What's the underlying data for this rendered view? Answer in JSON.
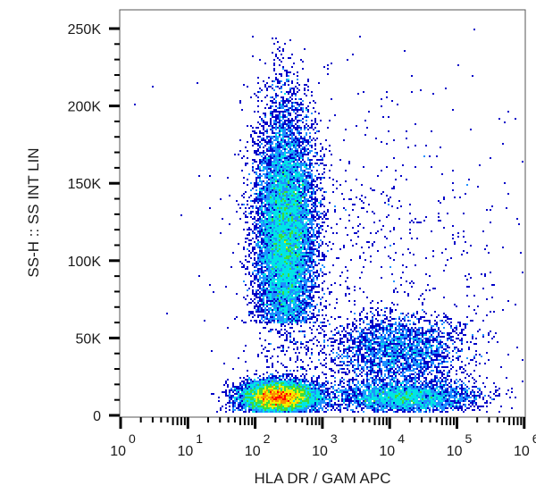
{
  "chart_data": {
    "type": "scatter",
    "subtype": "flow-cytometry-density-dot-plot",
    "title": "",
    "xlabel": "HLA DR  / GAM APC",
    "ylabel": "SS-H :: SS INT LIN",
    "x_scale": "log",
    "y_scale": "linear",
    "xlim": [
      1,
      1000000
    ],
    "ylim": [
      0,
      262144
    ],
    "x_ticks": [
      {
        "base": "10",
        "exp": "0",
        "value": 1
      },
      {
        "base": "10",
        "exp": "1",
        "value": 10
      },
      {
        "base": "10",
        "exp": "2",
        "value": 100
      },
      {
        "base": "10",
        "exp": "3",
        "value": 1000
      },
      {
        "base": "10",
        "exp": "4",
        "value": 10000
      },
      {
        "base": "10",
        "exp": "5",
        "value": 100000
      },
      {
        "base": "10",
        "exp": "6",
        "value": 1000000
      }
    ],
    "y_ticks": [
      {
        "label": "0",
        "value": 0
      },
      {
        "label": "50K",
        "value": 50000
      },
      {
        "label": "100K",
        "value": 100000
      },
      {
        "label": "150K",
        "value": 150000
      },
      {
        "label": "200K",
        "value": 200000
      },
      {
        "label": "250K",
        "value": 250000
      }
    ],
    "y_minor_tick_step": 10000,
    "grid": false,
    "legend": null,
    "color_scale": [
      "#0000c8",
      "#1e90ff",
      "#00e5e5",
      "#3cdc3c",
      "#f0f000",
      "#ff8c00",
      "#ff0000"
    ],
    "populations": [
      {
        "name": "HLA-DR+ high side-scatter cluster",
        "center_log10_x": 2.45,
        "center_y": 115000,
        "spread_log10_x": 0.22,
        "spread_y": 42000,
        "y_range": [
          60000,
          245000
        ],
        "peak_color": "#ff0000",
        "relative_density": 0.45
      },
      {
        "name": "low side-scatter cluster (lymphocytes)",
        "center_log10_x": 2.35,
        "center_y": 12000,
        "spread_log10_x": 0.28,
        "spread_y": 5000,
        "y_range": [
          0,
          30000
        ],
        "peak_color": "#ff0000",
        "relative_density": 0.3
      },
      {
        "name": "low SS HLA-DR bright tail",
        "center_log10_x": 4.2,
        "center_y": 12000,
        "spread_log10_x": 0.55,
        "spread_y": 5000,
        "y_range": [
          0,
          30000
        ],
        "peak_color": "#00e5e5",
        "relative_density": 0.12
      },
      {
        "name": "intermediate SS HLA-DR bright population",
        "center_log10_x": 4.1,
        "center_y": 42000,
        "spread_log10_x": 0.5,
        "spread_y": 12000,
        "y_range": [
          20000,
          70000
        ],
        "peak_color": "#00e5e5",
        "relative_density": 0.1
      },
      {
        "name": "sparse scatter",
        "center_log10_x": 3.8,
        "center_y": 100000,
        "spread_log10_x": 1.2,
        "spread_y": 60000,
        "relative_density": 0.03
      }
    ]
  },
  "plot": {
    "frame_color": "#555555",
    "seed": 7
  }
}
